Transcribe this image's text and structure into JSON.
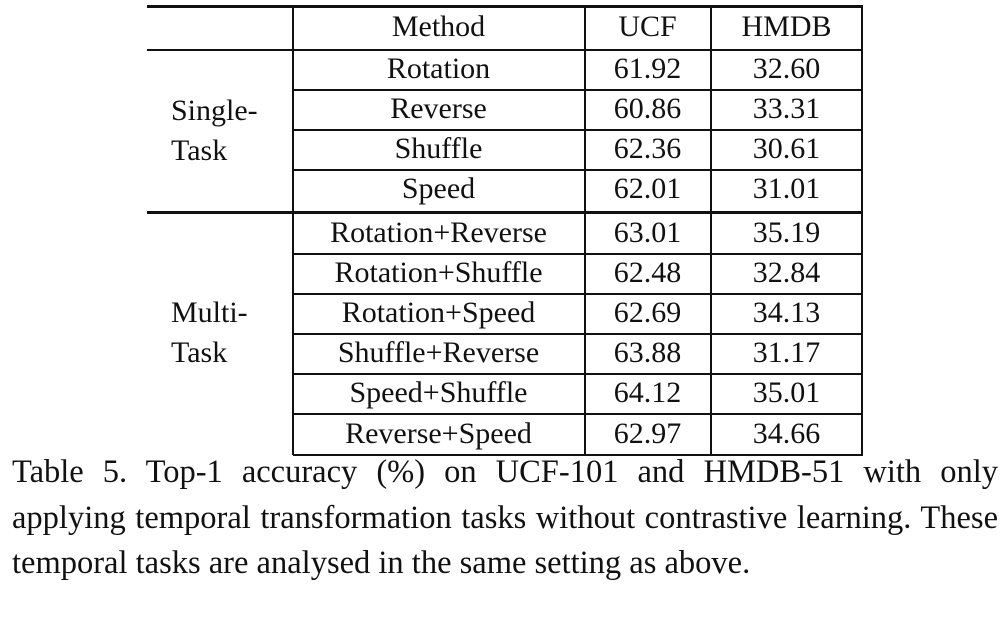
{
  "table": {
    "headers": [
      "",
      "Method",
      "UCF",
      "HMDB"
    ],
    "groups": [
      {
        "label_lines": [
          "Single-",
          "Task"
        ],
        "rows": [
          {
            "method": "Rotation",
            "ucf": "61.92",
            "hmdb": "32.60"
          },
          {
            "method": "Reverse",
            "ucf": "60.86",
            "hmdb": "33.31"
          },
          {
            "method": "Shuffle",
            "ucf": "62.36",
            "hmdb": "30.61"
          },
          {
            "method": "Speed",
            "ucf": "62.01",
            "hmdb": "31.01"
          }
        ]
      },
      {
        "label_lines": [
          "Multi-",
          "Task"
        ],
        "rows": [
          {
            "method": "Rotation+Reverse",
            "ucf": "63.01",
            "hmdb": "35.19"
          },
          {
            "method": "Rotation+Shuffle",
            "ucf": "62.48",
            "hmdb": "32.84"
          },
          {
            "method": "Rotation+Speed",
            "ucf": "62.69",
            "hmdb": "34.13"
          },
          {
            "method": "Shuffle+Reverse",
            "ucf": "63.88",
            "hmdb": "31.17"
          },
          {
            "method": "Speed+Shuffle",
            "ucf": "64.12",
            "hmdb": "35.01"
          },
          {
            "method": "Reverse+Speed",
            "ucf": "62.97",
            "hmdb": "34.66"
          }
        ]
      }
    ]
  },
  "caption": "Table 5. Top-1 accuracy (%) on UCF-101 and HMDB-51 with only applying temporal transformation tasks without contrastive learning. These temporal tasks are analysed in the same setting as above."
}
